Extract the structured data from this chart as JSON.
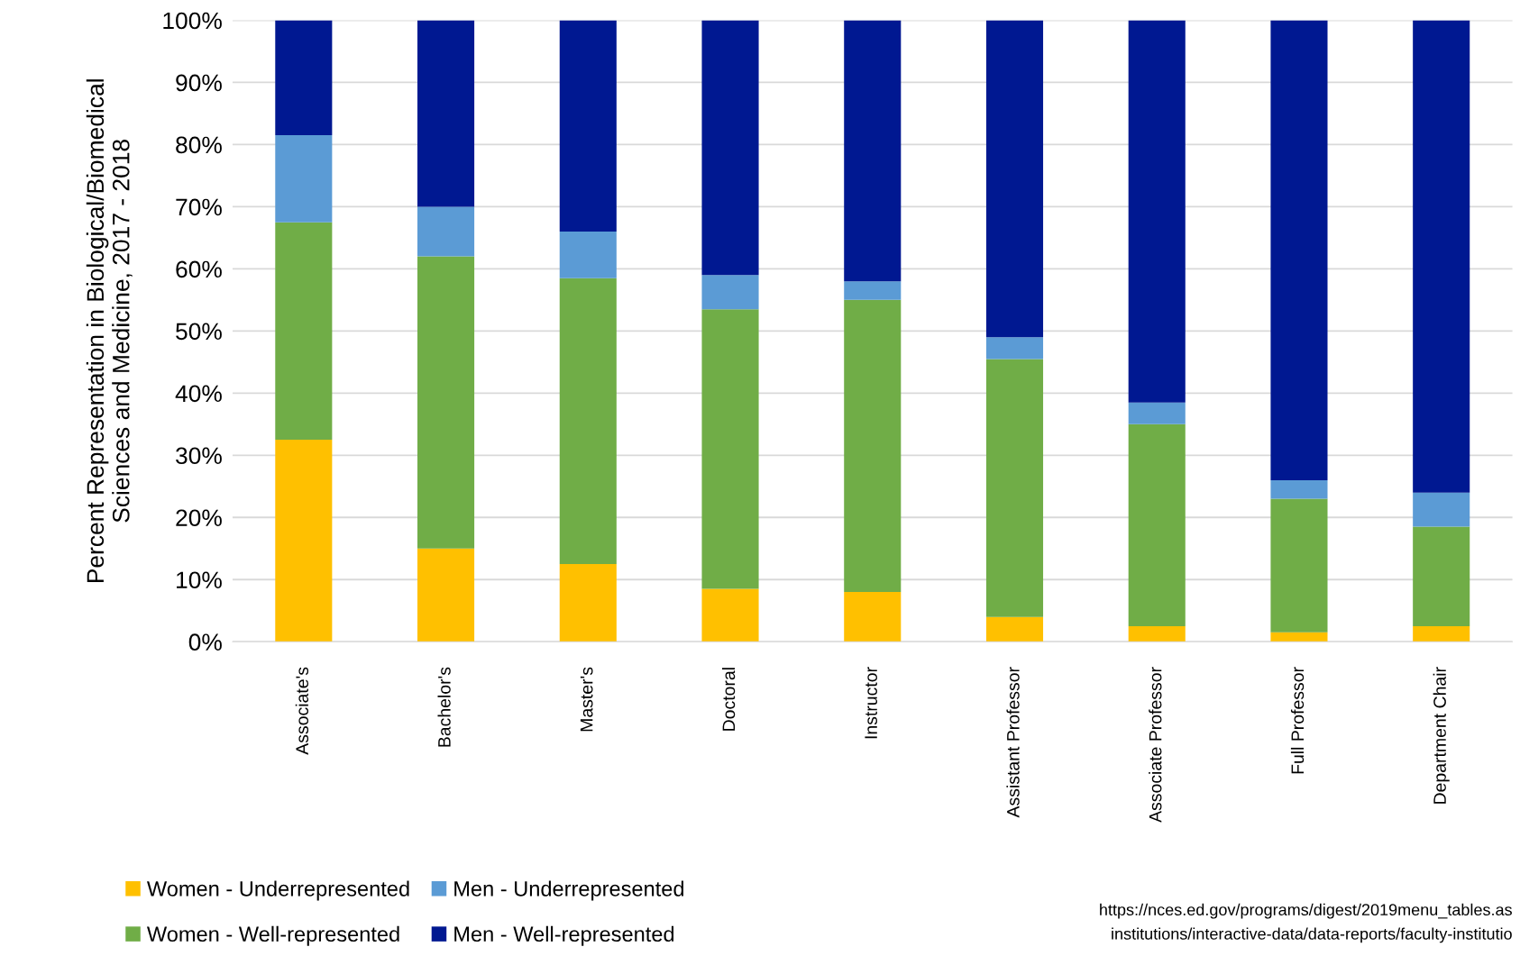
{
  "chart_data": {
    "type": "bar",
    "stacked": true,
    "categories": [
      "Associate's",
      "Bachelor's",
      "Master's",
      "Doctoral",
      "Instructor",
      "Assistant Professor",
      "Associate Professor",
      "Full Professor",
      "Department Chair"
    ],
    "series": [
      {
        "name": "Women - Underrepresented",
        "color": "#ffc000",
        "values": [
          32.5,
          15,
          12.5,
          8.5,
          8,
          4,
          2.5,
          1.5,
          2.5
        ]
      },
      {
        "name": "Women - Well-represented",
        "color": "#70ad47",
        "values": [
          35,
          47,
          46,
          45,
          47,
          41.5,
          32.5,
          21.5,
          16
        ]
      },
      {
        "name": "Men - Underrepresented",
        "color": "#5b9bd5",
        "values": [
          14,
          8,
          7.5,
          5.5,
          3,
          3.5,
          3.5,
          3,
          5.5
        ]
      },
      {
        "name": "Men - Well-represented",
        "color": "#001891",
        "values": [
          18.5,
          30,
          34,
          41,
          42,
          51,
          61.5,
          74,
          76
        ]
      }
    ],
    "ylabel": "Percent Representation in Biological/Biomedical\nSciences and Medicine, 2017 - 2018",
    "ylim": [
      0,
      100
    ],
    "yticks": [
      {
        "value": 0,
        "label": "0%"
      },
      {
        "value": 10,
        "label": "10%"
      },
      {
        "value": 20,
        "label": "20%"
      },
      {
        "value": 30,
        "label": "30%"
      },
      {
        "value": 40,
        "label": "40%"
      },
      {
        "value": 50,
        "label": "50%"
      },
      {
        "value": 60,
        "label": "60%"
      },
      {
        "value": 70,
        "label": "70%"
      },
      {
        "value": 80,
        "label": "80%"
      },
      {
        "value": 90,
        "label": "90%"
      },
      {
        "value": 100,
        "label": "100%"
      }
    ],
    "grid": "y",
    "legend": "bottom",
    "annotations": [
      "https://nces.ed.gov/programs/digest/2019menu_tables.as",
      "institutions/interactive-data/data-reports/faculty-institutio"
    ]
  }
}
